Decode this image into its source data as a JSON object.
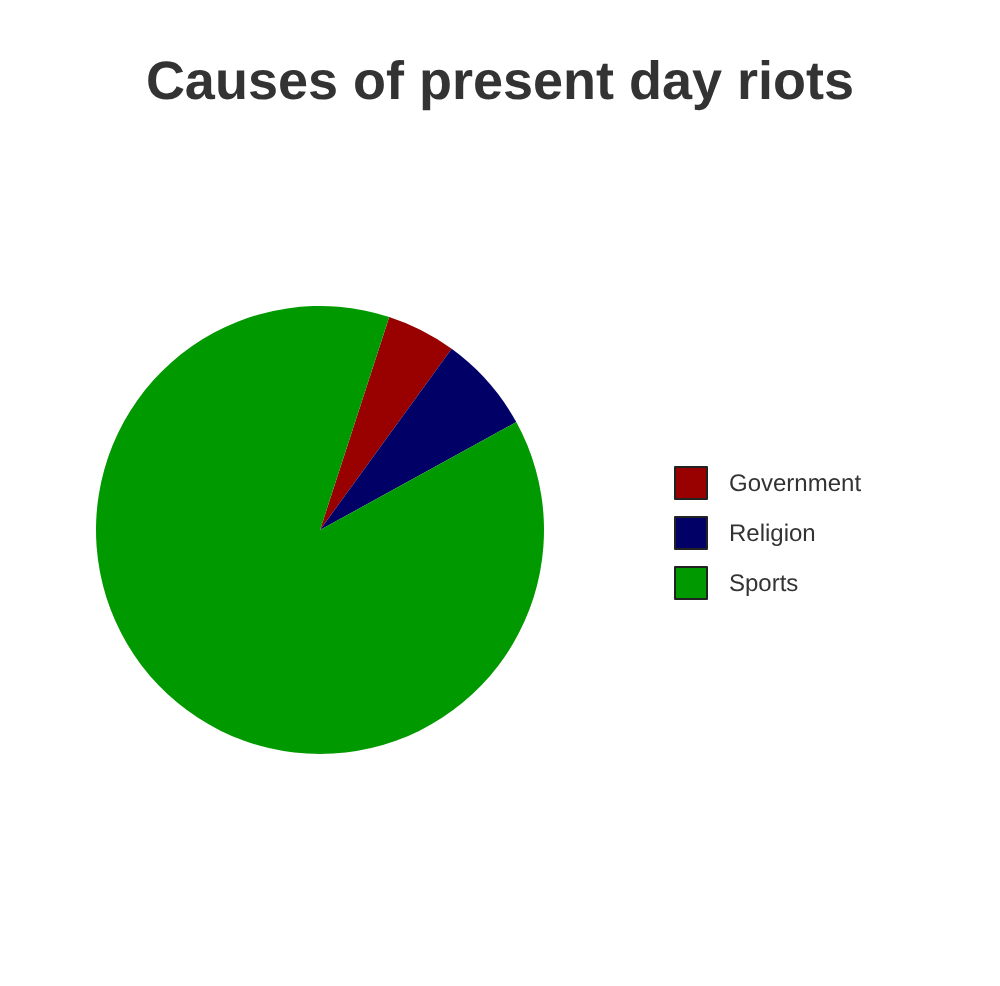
{
  "chart_data": {
    "type": "pie",
    "title": "Causes of present day riots",
    "categories": [
      "Government",
      "Religion",
      "Sports"
    ],
    "values": [
      5,
      7,
      88
    ],
    "colors": [
      "#990000",
      "#000066",
      "#009900"
    ],
    "legend": "right"
  }
}
